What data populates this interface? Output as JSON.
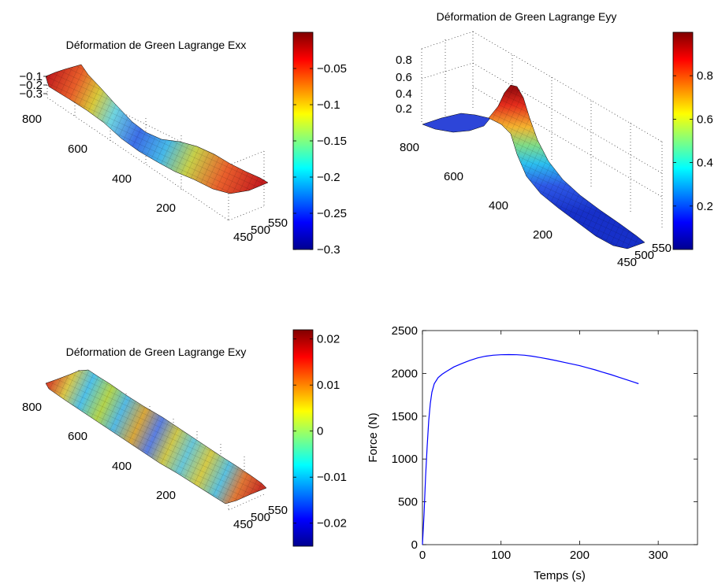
{
  "chart_data": [
    {
      "type": "surface",
      "title": "Déformation de Green Lagrange Exx",
      "z_ticks": [
        "−0.1",
        "−0.2",
        "−0.3"
      ],
      "y_ticks": [
        "800",
        "600",
        "400",
        "200"
      ],
      "x_ticks": [
        "450",
        "500",
        "550"
      ],
      "colorbar": {
        "range": [
          -0.3,
          0.0
        ],
        "ticks": [
          -0.05,
          -0.1,
          -0.15,
          -0.2,
          -0.25,
          -0.3
        ],
        "tick_labels": [
          "−0.05",
          "−0.1",
          "−0.15",
          "−0.2",
          "−0.25",
          "−0.3"
        ]
      },
      "profile": {
        "y": [
          850,
          700,
          600,
          500,
          400,
          300,
          200,
          50
        ],
        "z": [
          -0.02,
          -0.03,
          -0.12,
          -0.27,
          -0.25,
          -0.1,
          -0.04,
          -0.02
        ]
      }
    },
    {
      "type": "surface",
      "title": "Déformation de Green Lagrange Eyy",
      "z_ticks": [
        "0.8",
        "0.6",
        "0.4",
        "0.2"
      ],
      "y_ticks": [
        "800",
        "600",
        "400",
        "200"
      ],
      "x_ticks": [
        "450",
        "500",
        "550"
      ],
      "colorbar": {
        "range": [
          0.0,
          1.0
        ],
        "ticks": [
          0.8,
          0.6,
          0.4,
          0.2
        ],
        "tick_labels": [
          "0.8",
          "0.6",
          "0.4",
          "0.2"
        ]
      },
      "profile": {
        "y": [
          850,
          750,
          700,
          650,
          600,
          500,
          400,
          300,
          200,
          50
        ],
        "z": [
          0.05,
          0.1,
          0.35,
          0.95,
          0.75,
          0.15,
          0.05,
          0.03,
          0.02,
          0.02
        ]
      }
    },
    {
      "type": "surface",
      "title": "Déformation de Green Lagrange Exy",
      "y_ticks": [
        "800",
        "600",
        "400",
        "200"
      ],
      "x_ticks": [
        "450",
        "500",
        "550"
      ],
      "colorbar": {
        "range": [
          -0.025,
          0.022
        ],
        "ticks": [
          0.02,
          0.01,
          0,
          -0.01,
          -0.02
        ],
        "tick_labels": [
          "0.02",
          "0.01",
          "0",
          "−0.01",
          "−0.02"
        ]
      }
    },
    {
      "type": "line",
      "xlabel": "Temps (s)",
      "ylabel": "Force (N)",
      "xlim": [
        0,
        350
      ],
      "ylim": [
        0,
        2500
      ],
      "x_ticks": [
        0,
        100,
        200,
        300
      ],
      "y_ticks": [
        0,
        500,
        1000,
        1500,
        2000,
        2500
      ],
      "line_color": "#0000ff",
      "series": [
        {
          "x": [
            0,
            2,
            4,
            6,
            8,
            10,
            12,
            15,
            20,
            25,
            30,
            40,
            50,
            60,
            70,
            80,
            90,
            100,
            110,
            120,
            130,
            140,
            150,
            160,
            170,
            180,
            190,
            200,
            210,
            220,
            230,
            240,
            250,
            260,
            270,
            275
          ],
          "y": [
            0,
            350,
            800,
            1150,
            1450,
            1650,
            1780,
            1880,
            1950,
            1990,
            2020,
            2075,
            2115,
            2150,
            2180,
            2200,
            2212,
            2218,
            2220,
            2218,
            2212,
            2200,
            2185,
            2168,
            2150,
            2130,
            2110,
            2090,
            2065,
            2040,
            2012,
            1985,
            1955,
            1925,
            1895,
            1880
          ]
        }
      ]
    }
  ]
}
